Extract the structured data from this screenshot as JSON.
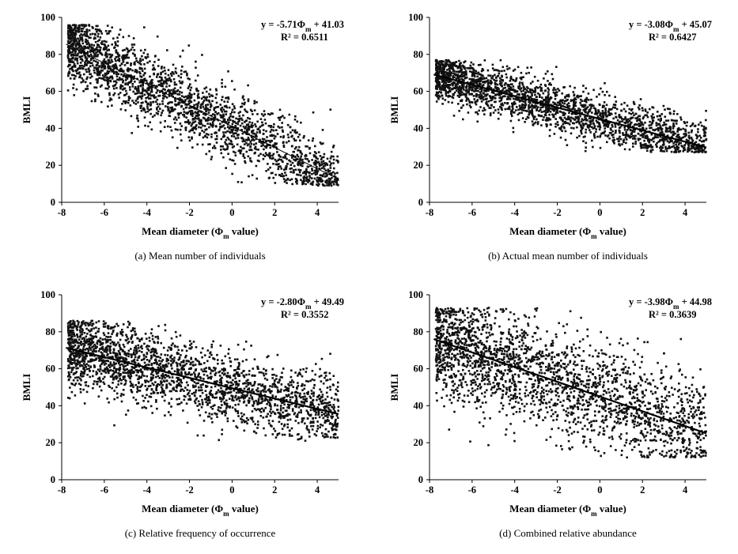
{
  "chart_data": [
    {
      "type": "scatter",
      "caption": "(a)  Mean  number  of  individuals",
      "xlabel": "Mean diameter (Φ",
      "xlabel_sub": "m",
      "xlabel_end": " value)",
      "ylabel": "BMLI",
      "xlim": [
        -8,
        5
      ],
      "ylim": [
        0,
        100
      ],
      "xticks": [
        -8,
        -6,
        -4,
        -2,
        0,
        2,
        4
      ],
      "yticks": [
        0,
        20,
        40,
        60,
        80,
        100
      ],
      "equation": {
        "pre": "y = -5.71Φ",
        "sub": "m",
        "post": " + 41.03"
      },
      "r2_text": "R² = 0.6511",
      "trendline": {
        "slope": -5.71,
        "intercept": 41.03
      },
      "grid": false,
      "cloud": {
        "n": 2300,
        "x_range": [
          -7.7,
          5
        ],
        "noise_sd": 9.5,
        "ymin": 9,
        "ymax": 96,
        "seed": 11
      }
    },
    {
      "type": "scatter",
      "caption": "(b)  Actual  mean  number  of  individuals",
      "xlabel": "Mean diameter (Φ",
      "xlabel_sub": "m",
      "xlabel_end": " value)",
      "ylabel": "BMLI",
      "xlim": [
        -8,
        5
      ],
      "ylim": [
        0,
        100
      ],
      "xticks": [
        -8,
        -6,
        -4,
        -2,
        0,
        2,
        4
      ],
      "yticks": [
        0,
        20,
        40,
        60,
        80,
        100
      ],
      "equation": {
        "pre": "y = -3.08Φ",
        "sub": "m",
        "post": " + 45.07"
      },
      "r2_text": "R² = 0.6427",
      "trendline": {
        "slope": -3.08,
        "intercept": 45.07
      },
      "grid": false,
      "cloud": {
        "n": 2300,
        "x_range": [
          -7.7,
          5
        ],
        "noise_sd": 6.5,
        "ymin": 27,
        "ymax": 77,
        "seed": 23
      }
    },
    {
      "type": "scatter",
      "caption": "(c)  Relative  frequency  of  occurrence",
      "xlabel": "Mean diameter (Φ",
      "xlabel_sub": "m",
      "xlabel_end": " value)",
      "ylabel": "BMLI",
      "xlim": [
        -8,
        5
      ],
      "ylim": [
        0,
        100
      ],
      "xticks": [
        -8,
        -6,
        -4,
        -2,
        0,
        2,
        4
      ],
      "yticks": [
        0,
        20,
        40,
        60,
        80,
        100
      ],
      "equation": {
        "pre": "y = -2.80Φ",
        "sub": "m",
        "post": " + 49.49"
      },
      "r2_text": "R² = 0.3552",
      "trendline": {
        "slope": -2.8,
        "intercept": 49.49
      },
      "grid": false,
      "cloud": {
        "n": 2300,
        "x_range": [
          -7.7,
          5
        ],
        "noise_sd": 10,
        "ymin": 21,
        "ymax": 86,
        "seed": 37
      }
    },
    {
      "type": "scatter",
      "caption": "(d)  Combined  relative  abundance",
      "xlabel": "Mean diameter (Φ",
      "xlabel_sub": "m",
      "xlabel_end": " value)",
      "ylabel": "BMLI",
      "xlim": [
        -8,
        5
      ],
      "ylim": [
        0,
        100
      ],
      "xticks": [
        -8,
        -6,
        -4,
        -2,
        0,
        2,
        4
      ],
      "yticks": [
        0,
        20,
        40,
        60,
        80,
        100
      ],
      "equation": {
        "pre": "y = -3.98Φ",
        "sub": "m",
        "post": " + 44.98"
      },
      "r2_text": "R² = 0.3639",
      "trendline": {
        "slope": -3.98,
        "intercept": 44.98
      },
      "grid": false,
      "cloud": {
        "n": 2300,
        "x_range": [
          -7.7,
          5
        ],
        "noise_sd": 14,
        "ymin": 12,
        "ymax": 93,
        "seed": 53
      }
    }
  ]
}
